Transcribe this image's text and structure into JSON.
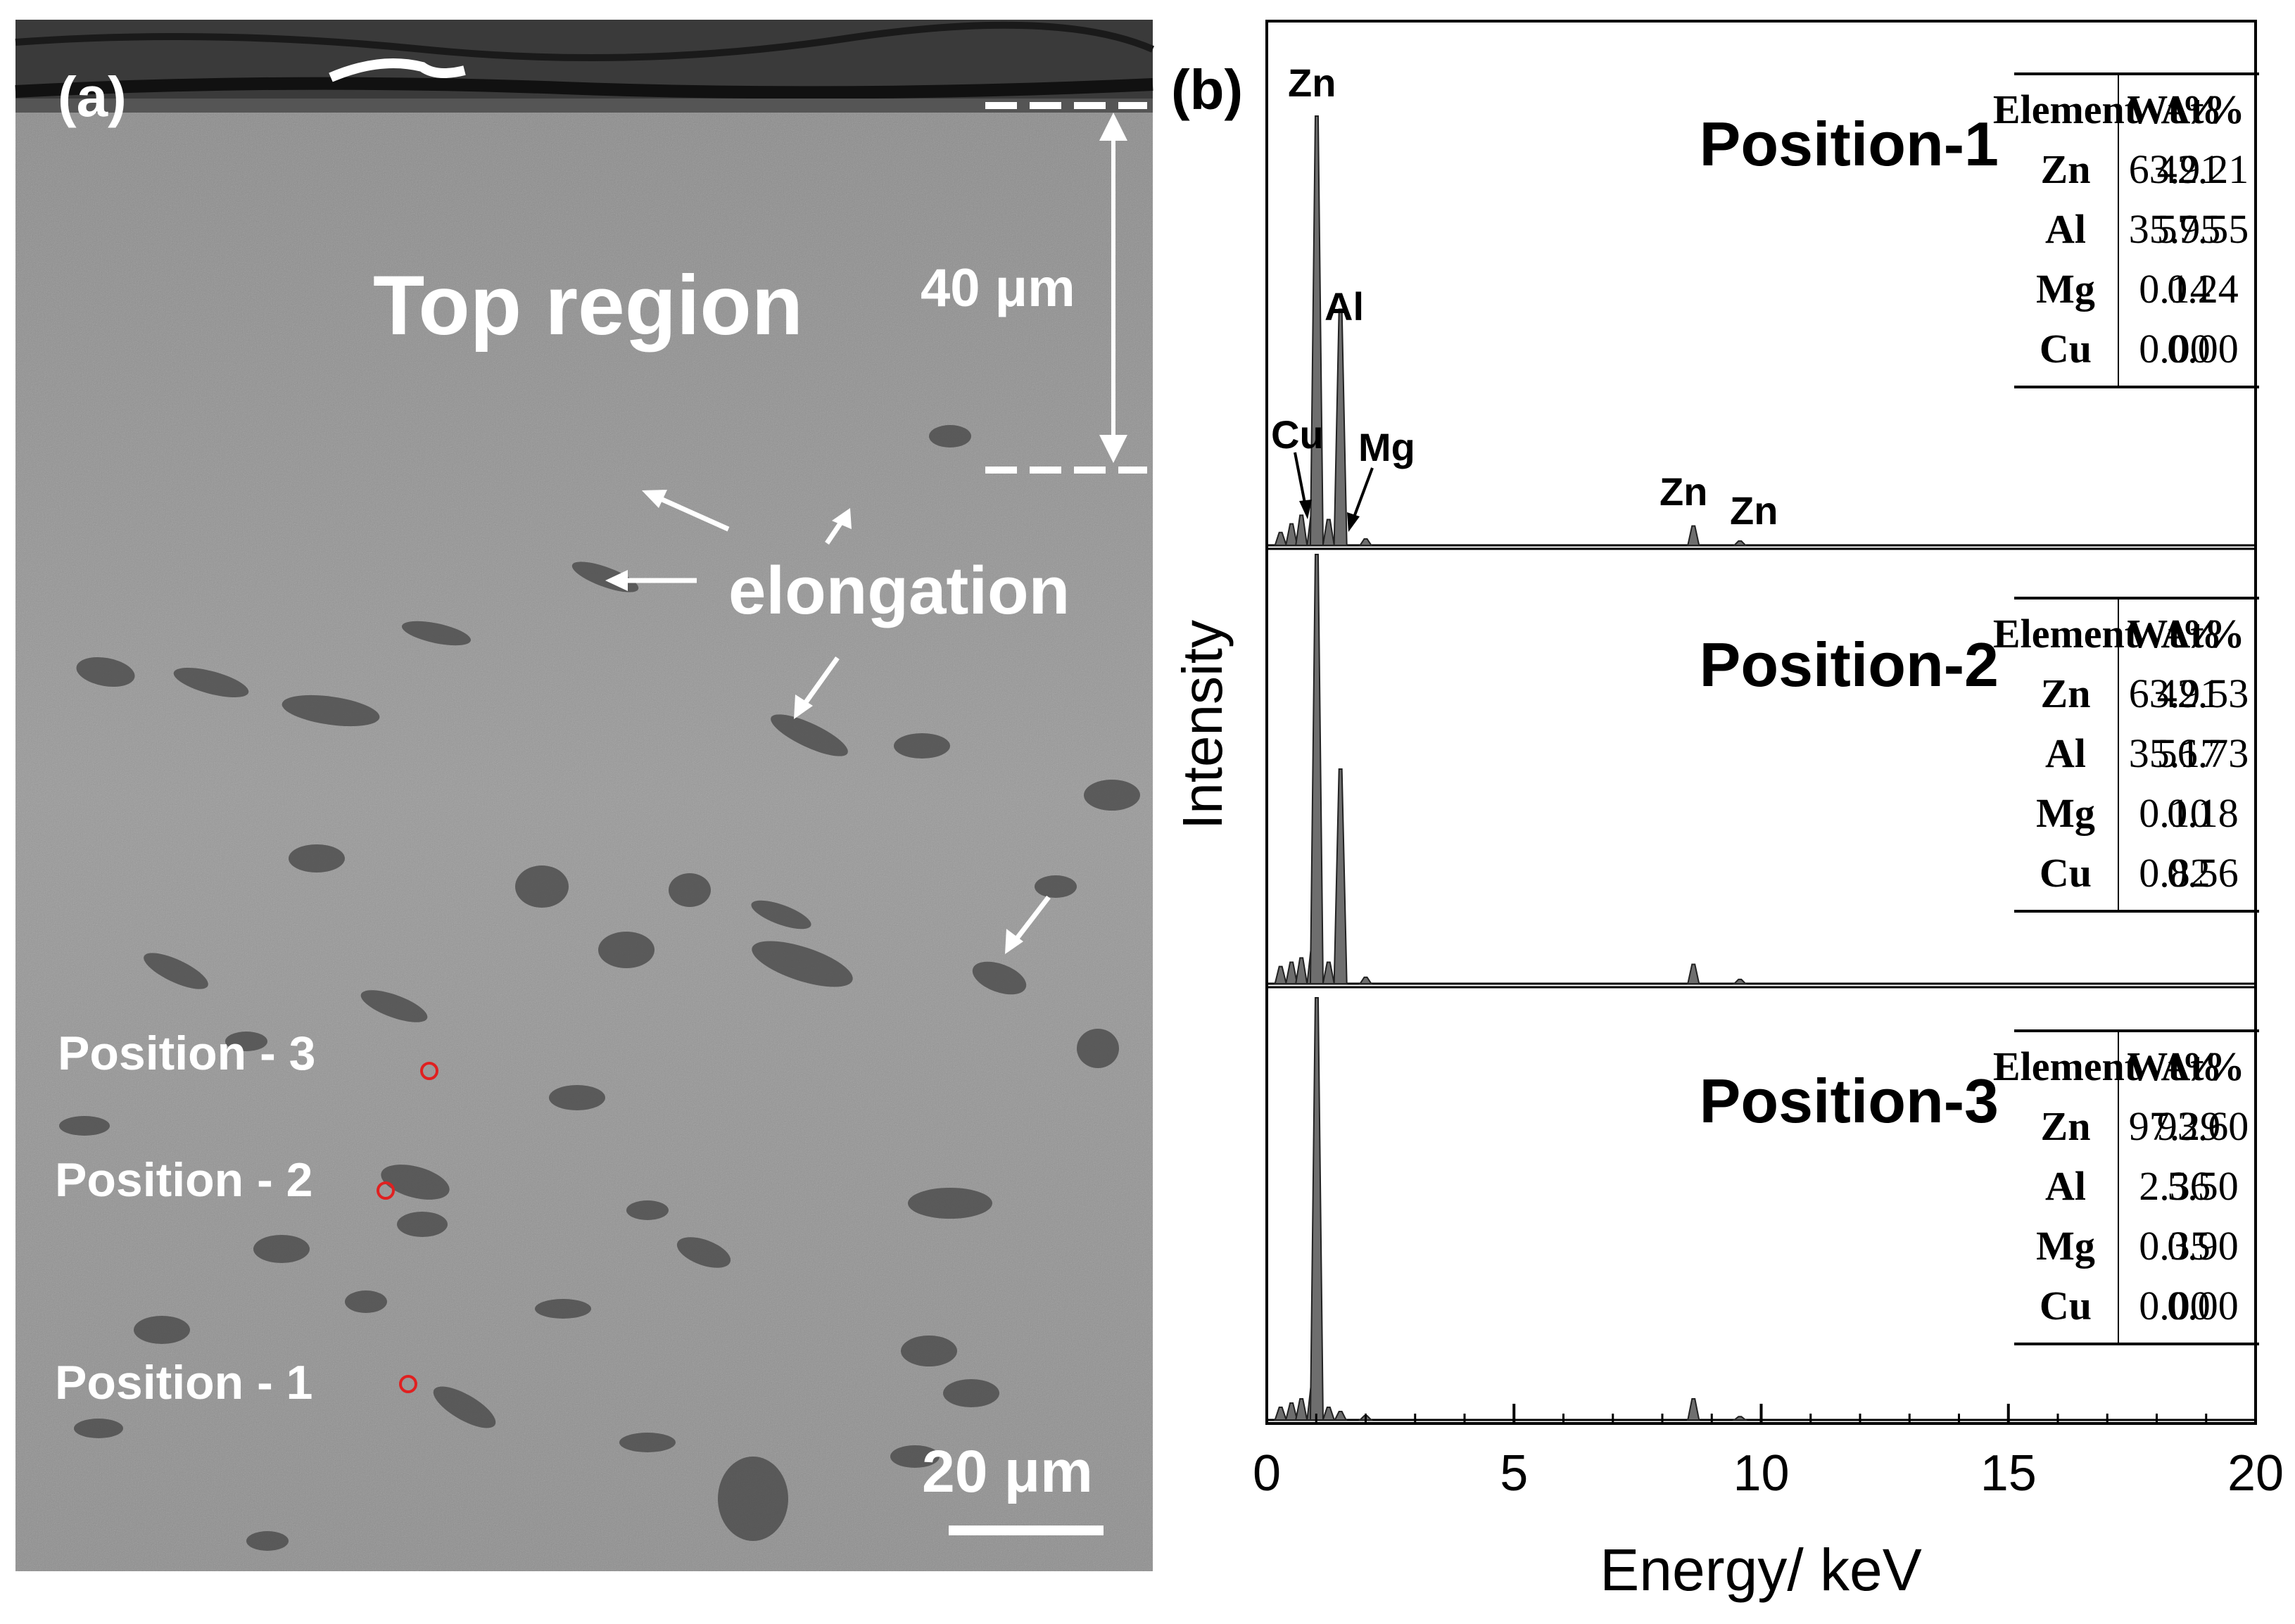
{
  "panel_a": {
    "label": "(a)",
    "region_label": "Top region",
    "depth_label": "40 μm",
    "feature_label": "elongation",
    "scale_label": "20 μm",
    "positions": [
      "Position - 3",
      "Position - 2",
      "Position - 1"
    ]
  },
  "panel_b": {
    "label": "(b)",
    "peak_labels": [
      "Zn",
      "Al",
      "Cu",
      "Mg",
      "Zn",
      "Zn"
    ],
    "table_headers": [
      "Element",
      "Wt%",
      "At%"
    ]
  },
  "chart_data": {
    "type": "line",
    "xlabel": "Energy/ keV",
    "ylabel": "Intensity",
    "xlim": [
      0,
      20
    ],
    "xticks": [
      0,
      5,
      10,
      15,
      20
    ],
    "grid": false,
    "spectra": [
      {
        "name": "Position-1",
        "x": [
          0.28,
          0.5,
          0.7,
          0.93,
          1.01,
          1.25,
          1.49,
          2.0,
          8.63,
          9.57
        ],
        "y": [
          0.03,
          0.05,
          0.07,
          0.08,
          1.0,
          0.06,
          0.55,
          0.015,
          0.045,
          0.01
        ],
        "table": [
          {
            "element": "Zn",
            "wt": "63.91",
            "at": "42.21"
          },
          {
            "element": "Al",
            "wt": "35.95",
            "at": "57.55"
          },
          {
            "element": "Mg",
            "wt": "0.14",
            "at": "0.24"
          },
          {
            "element": "Cu",
            "wt": "0.00",
            "at": "0.00"
          }
        ]
      },
      {
        "name": "Position-2",
        "x": [
          0.28,
          0.5,
          0.7,
          0.93,
          1.01,
          1.25,
          1.49,
          2.0,
          8.63,
          9.57
        ],
        "y": [
          0.04,
          0.05,
          0.06,
          0.09,
          1.0,
          0.05,
          0.5,
          0.015,
          0.045,
          0.01
        ],
        "table": [
          {
            "element": "Zn",
            "wt": "63.91",
            "at": "42.53"
          },
          {
            "element": "Al",
            "wt": "35.17",
            "at": "56.73"
          },
          {
            "element": "Mg",
            "wt": "0.10",
            "at": "0.18"
          },
          {
            "element": "Cu",
            "wt": "0.82",
            "at": "0.56"
          }
        ]
      },
      {
        "name": "Position-3",
        "x": [
          0.28,
          0.5,
          0.7,
          0.93,
          1.01,
          1.25,
          1.49,
          2.0,
          8.63,
          9.57
        ],
        "y": [
          0.03,
          0.04,
          0.05,
          0.09,
          1.0,
          0.03,
          0.02,
          0.01,
          0.05,
          0.008
        ],
        "table": [
          {
            "element": "Zn",
            "wt": "97.29",
            "at": "93.60"
          },
          {
            "element": "Al",
            "wt": "2.36",
            "at": "5.50"
          },
          {
            "element": "Mg",
            "wt": "0.35",
            "at": "0.90"
          },
          {
            "element": "Cu",
            "wt": "0.00",
            "at": "0.00"
          }
        ]
      }
    ]
  },
  "colors": {
    "sem_background": "#8c8c8c",
    "marker_circle": "#e02020",
    "spectrum_fill": "#6e6e6e",
    "axis": "#000000",
    "annotation": "#ffffff"
  }
}
